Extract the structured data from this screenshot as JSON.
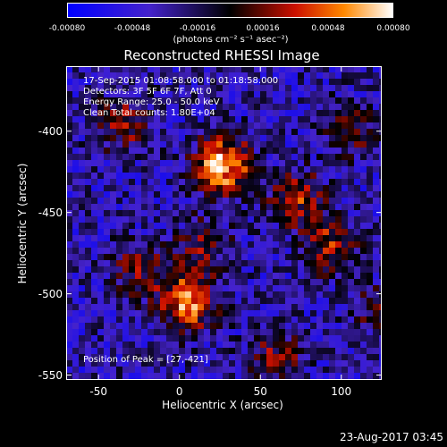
{
  "colorbar": {
    "ticks": [
      "-0.00080",
      "-0.00048",
      "-0.00016",
      "0.00016",
      "0.00048",
      "0.00080"
    ],
    "units": "(photons cm⁻² s⁻¹ asec⁻²)"
  },
  "chart_data": {
    "type": "heatmap",
    "title": "Reconstructed RHESSI Image",
    "xlabel": "Heliocentric X (arcsec)",
    "ylabel": "Heliocentric Y (arcsec)",
    "xlim": [
      -70,
      125
    ],
    "ylim": [
      -553,
      -360
    ],
    "color_range": [
      -0.0008,
      0.0008
    ],
    "xticks": [
      "-50",
      "0",
      "50",
      "100"
    ],
    "yticks": [
      "-400",
      "-450",
      "-500",
      "-550"
    ],
    "xtick_values": [
      -50,
      0,
      50,
      100
    ],
    "ytick_values": [
      -400,
      -450,
      -500,
      -550
    ],
    "annotations": {
      "time_range": "17-Sep-2015 01:08:58.000 to 01:18:58.000",
      "detectors": "Detectors: 3F 5F 6F 7F, Att 0",
      "energy_range": "Energy Range: 25.0 - 50.0 keV",
      "method": "Clean    Total counts: 1.80E+04",
      "peak": "Position of Peak = [27,-421]"
    },
    "peak_position": [
      27,
      -421
    ],
    "bright_sources": [
      {
        "x": 27,
        "y": -421,
        "level": 0.0008
      },
      {
        "x": 5,
        "y": -505,
        "level": 0.0007
      },
      {
        "x": 72,
        "y": -440,
        "level": 0.00045
      },
      {
        "x": 92,
        "y": -470,
        "level": 0.00045
      },
      {
        "x": -35,
        "y": -395,
        "level": 0.0004
      },
      {
        "x": -25,
        "y": -485,
        "level": 0.00035
      },
      {
        "x": 60,
        "y": -540,
        "level": 0.00035
      },
      {
        "x": 105,
        "y": -400,
        "level": 0.0003
      },
      {
        "x": 15,
        "y": -470,
        "level": 0.0003
      },
      {
        "x": 120,
        "y": -510,
        "level": 0.00025
      }
    ]
  },
  "datestamp": "23-Aug-2017 03:45"
}
